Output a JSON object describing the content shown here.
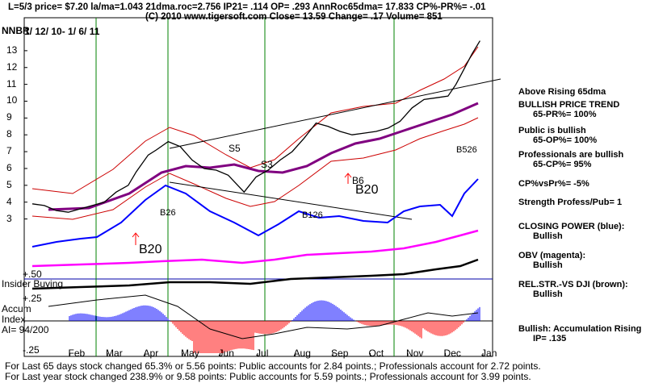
{
  "header": {
    "line1": "L=5/3  price= $7.20  la/ma=1.043 21dma.roc=2.756 IP21= .114 OP= .293 AnnRoc65dma= 17.833 CP%-PR%= -.01",
    "line2": "(C) 2010 www.tigersoft.com     Close=  13.59  Change=  .17 Volume=  851",
    "ticker": "NNBR",
    "date_range": "1/ 12/ 10-  1/ 6/ 11"
  },
  "right_panel": [
    {
      "heading": "Above Rising 65dma",
      "sub": ""
    },
    {
      "heading": "BULLISH PRICE TREND",
      "sub": "65-PR%= 100%"
    },
    {
      "heading": "Public is bullish",
      "sub": "65-OP%= 100%"
    },
    {
      "heading": "Professionals are bullish",
      "sub": "65-CP%= 95%"
    },
    {
      "heading": "CP%vsPr%= -5%",
      "sub": ""
    },
    {
      "heading": "Strength Profess/Pub= 1",
      "sub": ""
    },
    {
      "heading": "CLOSING POWER (blue):",
      "sub": "Bullish"
    },
    {
      "heading": "OBV (magenta):",
      "sub": "Bullish"
    },
    {
      "heading": "REL.STR.-VS DJI (brown):",
      "sub": "Bullish"
    },
    {
      "heading": "Bullish: Accumulation Rising",
      "sub": "IP=  .135"
    }
  ],
  "bottom": {
    "line1": "For Last 65 days stock changed  65.3% or  5.56 points:  Public accounts for  2.84 points.;  Professionals account for  2.72 points.",
    "line2": "For Last year stock changed  238.9% or  9.58 points:  Public accounts for  5.59 points.;  Professionals account for  3.99 points."
  },
  "panel_labels": {
    "insider": "Insider Buying",
    "plus50": "+.50",
    "plus25": "+.25",
    "minus25": "-.25",
    "accum": "Accum",
    "index": "Index",
    "ai": "AI= 94/200"
  },
  "signals": {
    "b20_upper": "B20",
    "b20_lower": "B20",
    "s5": "S5",
    "s3": "S3",
    "b6": "B6",
    "b26_a": "B26",
    "b26_b": "B126",
    "b26_c": "B526"
  },
  "colors": {
    "price": "#000000",
    "closing_power": "#0000ff",
    "obv": "#ff00ff",
    "rel_strength": "#800000",
    "ma65": "#800080",
    "bands": "#ff0000",
    "signal_lines": "#008000",
    "accum_pos": "#0000ff",
    "accum_neg": "#ff0000"
  },
  "chart_data": {
    "type": "line",
    "title": "NNBR",
    "x_tick_labels": [
      "Feb",
      "Mar",
      "Apr",
      "May",
      "Jun",
      "Jul",
      "Aug",
      "Sep",
      "Oct",
      "Nov",
      "Dec",
      "Jan"
    ],
    "y_tick_labels": [
      "3",
      "4",
      "5",
      "6",
      "7",
      "8",
      "9",
      "10",
      "11",
      "12",
      "13"
    ],
    "ylim": [
      2.5,
      14
    ],
    "price_series": {
      "months": [
        0.0,
        0.3,
        0.6,
        0.9,
        1.2,
        1.5,
        1.8,
        2.1,
        2.4,
        2.6,
        2.9,
        3.1,
        3.4,
        3.7,
        4.0,
        4.3,
        4.6,
        4.9,
        5.1,
        5.3,
        5.6,
        5.9,
        6.2,
        6.5,
        6.8,
        7.1,
        7.4,
        7.7,
        8.0,
        8.3,
        8.6,
        8.9,
        9.2,
        9.5,
        9.8,
        10.1,
        10.4,
        10.6,
        10.8,
        11.0,
        11.2
      ],
      "close": [
        3.9,
        3.8,
        3.5,
        3.4,
        3.6,
        3.8,
        4.0,
        4.6,
        5.0,
        5.8,
        6.8,
        7.1,
        7.6,
        7.3,
        6.5,
        6.0,
        5.9,
        5.6,
        5.1,
        4.6,
        5.5,
        5.9,
        6.5,
        7.0,
        7.8,
        8.7,
        8.5,
        8.2,
        8.0,
        8.1,
        8.2,
        8.4,
        8.8,
        9.6,
        10.1,
        10.2,
        10.3,
        11.0,
        11.9,
        12.8,
        13.59
      ]
    },
    "signal_months": [
      1.2,
      3.1,
      6.4,
      9.55
    ]
  }
}
